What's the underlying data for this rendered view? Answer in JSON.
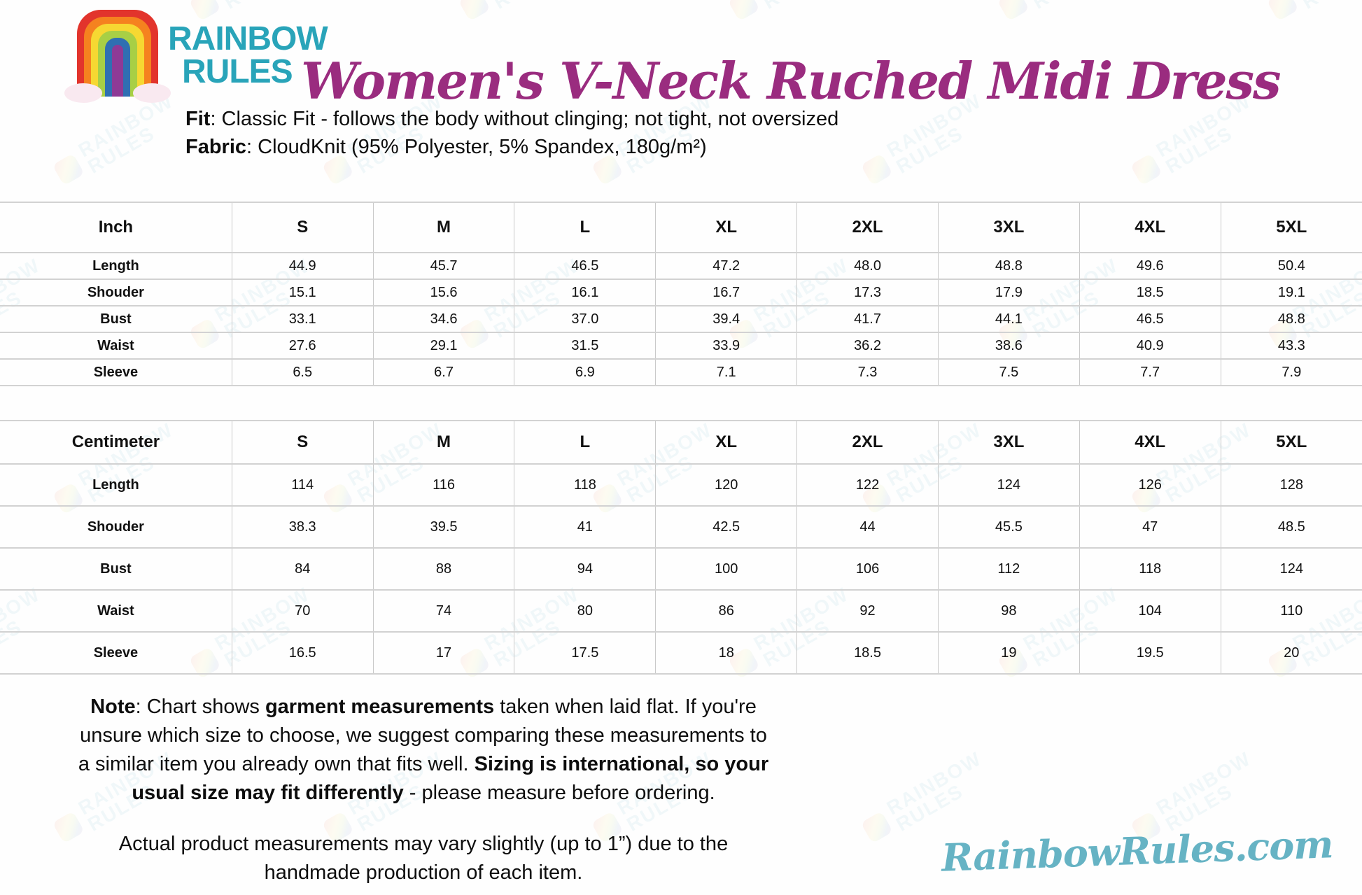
{
  "brand": {
    "logo_line1": "RAINBOW",
    "logo_line2": "RULES",
    "website": "RainbowRules.com"
  },
  "header": {
    "title": "Women's V-Neck Ruched Midi Dress",
    "fit_label": "Fit",
    "fit_text": ": Classic Fit - follows the body without clinging; not tight, not oversized",
    "fabric_label": "Fabric",
    "fabric_text": ": CloudKnit (95% Polyester, 5% Spandex, 180g/m²)"
  },
  "size_tables": [
    {
      "unit_header": "Inch",
      "sizes": [
        "S",
        "M",
        "L",
        "XL",
        "2XL",
        "3XL",
        "4XL",
        "5XL"
      ],
      "rows": [
        {
          "label": "Length",
          "values": [
            "44.9",
            "45.7",
            "46.5",
            "47.2",
            "48.0",
            "48.8",
            "49.6",
            "50.4"
          ]
        },
        {
          "label": "Shouder",
          "values": [
            "15.1",
            "15.6",
            "16.1",
            "16.7",
            "17.3",
            "17.9",
            "18.5",
            "19.1"
          ]
        },
        {
          "label": "Bust",
          "values": [
            "33.1",
            "34.6",
            "37.0",
            "39.4",
            "41.7",
            "44.1",
            "46.5",
            "48.8"
          ]
        },
        {
          "label": "Waist",
          "values": [
            "27.6",
            "29.1",
            "31.5",
            "33.9",
            "36.2",
            "38.6",
            "40.9",
            "43.3"
          ]
        },
        {
          "label": "Sleeve",
          "values": [
            "6.5",
            "6.7",
            "6.9",
            "7.1",
            "7.3",
            "7.5",
            "7.7",
            "7.9"
          ]
        }
      ]
    },
    {
      "unit_header": "Centimeter",
      "sizes": [
        "S",
        "M",
        "L",
        "XL",
        "2XL",
        "3XL",
        "4XL",
        "5XL"
      ],
      "rows": [
        {
          "label": "Length",
          "values": [
            "114",
            "116",
            "118",
            "120",
            "122",
            "124",
            "126",
            "128"
          ]
        },
        {
          "label": "Shouder",
          "values": [
            "38.3",
            "39.5",
            "41",
            "42.5",
            "44",
            "45.5",
            "47",
            "48.5"
          ]
        },
        {
          "label": "Bust",
          "values": [
            "84",
            "88",
            "94",
            "100",
            "106",
            "112",
            "118",
            "124"
          ]
        },
        {
          "label": "Waist",
          "values": [
            "70",
            "74",
            "80",
            "86",
            "92",
            "98",
            "104",
            "110"
          ]
        },
        {
          "label": "Sleeve",
          "values": [
            "16.5",
            "17",
            "17.5",
            "18",
            "18.5",
            "19",
            "19.5",
            "20"
          ]
        }
      ]
    }
  ],
  "notes": {
    "note_segments": [
      {
        "text": "Note",
        "bold": true
      },
      {
        "text": ": Chart shows ",
        "bold": false
      },
      {
        "text": "garment measurements",
        "bold": true
      },
      {
        "text": " taken when laid flat. If you're unsure which size to choose, we suggest comparing these measurements to a similar item you already own that fits well. ",
        "bold": false
      },
      {
        "text": "Sizing is international, so your usual size may fit differently",
        "bold": true
      },
      {
        "text": " - please measure before ordering.",
        "bold": false
      }
    ],
    "disclaimer": "Actual product measurements may vary slightly (up to 1”) due to the handmade production of each item."
  },
  "watermark": {
    "line1": "RAINBOW",
    "line2": "RULES"
  },
  "colors": {
    "title_magenta": "#9a2c7f",
    "brand_teal": "#29a4b9",
    "website_teal": "#66b3c4",
    "table_border_gray": "#cfcfcf",
    "rainbow": [
      "#e2342c",
      "#f5821f",
      "#f6d832",
      "#a8cf45",
      "#2f6fb2",
      "#8e3a96"
    ]
  }
}
